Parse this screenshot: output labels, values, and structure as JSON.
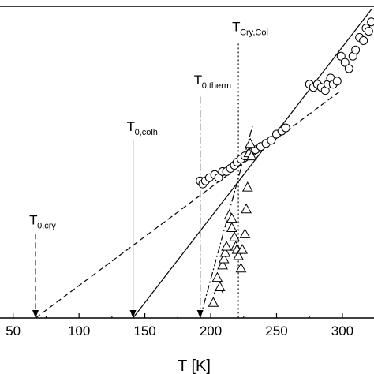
{
  "chart_data": {
    "type": "scatter",
    "xlabel": "T [K]",
    "xlim": [
      40,
      324
    ],
    "ylim": [
      0,
      1
    ],
    "xticks": [
      50,
      100,
      150,
      200,
      250,
      300
    ],
    "xtick_labels": [
      "50",
      "100",
      "150",
      "200",
      "250",
      "300"
    ],
    "series": [
      {
        "marker": "circle",
        "points": [
          [
            192,
            0.44
          ],
          [
            194,
            0.43
          ],
          [
            196,
            0.44
          ],
          [
            199,
            0.45
          ],
          [
            203,
            0.46
          ],
          [
            206,
            0.45
          ],
          [
            209,
            0.47
          ],
          [
            212,
            0.47
          ],
          [
            215,
            0.48
          ],
          [
            218,
            0.49
          ],
          [
            220,
            0.5
          ],
          [
            223,
            0.51
          ],
          [
            226,
            0.52
          ],
          [
            230,
            0.53
          ],
          [
            234,
            0.54
          ],
          [
            238,
            0.55
          ],
          [
            242,
            0.56
          ],
          [
            246,
            0.57
          ],
          [
            250,
            0.59
          ],
          [
            254,
            0.6
          ],
          [
            257,
            0.61
          ],
          [
            275,
            0.75
          ],
          [
            278,
            0.74
          ],
          [
            281,
            0.75
          ],
          [
            284,
            0.74
          ],
          [
            287,
            0.73
          ],
          [
            289,
            0.75
          ],
          [
            291,
            0.77
          ],
          [
            293,
            0.75
          ],
          [
            296,
            0.76
          ],
          [
            299,
            0.84
          ],
          [
            302,
            0.82
          ],
          [
            305,
            0.8
          ],
          [
            308,
            0.84
          ],
          [
            310,
            0.86
          ],
          [
            313,
            0.9
          ],
          [
            316,
            0.89
          ],
          [
            318,
            0.93
          ],
          [
            320,
            0.92
          ],
          [
            322,
            0.95
          ]
        ]
      },
      {
        "marker": "triangle",
        "points": [
          [
            202,
            0.05
          ],
          [
            205,
            0.13
          ],
          [
            206,
            0.09
          ],
          [
            207,
            0.1
          ],
          [
            209,
            0.17
          ],
          [
            210,
            0.19
          ],
          [
            211,
            0.21
          ],
          [
            212,
            0.23
          ],
          [
            214,
            0.33
          ],
          [
            216,
            0.29
          ],
          [
            216,
            0.32
          ],
          [
            218,
            0.26
          ],
          [
            219,
            0.23
          ],
          [
            220,
            0.22
          ],
          [
            221,
            0.2
          ],
          [
            223,
            0.16
          ],
          [
            224,
            0.22
          ],
          [
            226,
            0.27
          ],
          [
            227,
            0.35
          ],
          [
            228,
            0.42
          ],
          [
            229,
            0.53
          ],
          [
            230,
            0.56
          ],
          [
            231,
            0.52
          ]
        ]
      }
    ],
    "lines": [
      {
        "style": "solid",
        "from": [
          141,
          0.0
        ],
        "to": [
          322,
          0.99
        ]
      },
      {
        "style": "dashed",
        "from": [
          67,
          0.0
        ],
        "to": [
          299,
          0.73
        ]
      },
      {
        "style": "dashdot",
        "from": [
          192,
          0.0
        ],
        "to": [
          232,
          0.62
        ]
      }
    ],
    "annotations": [
      {
        "label": "T",
        "sub": "0,cry",
        "x": 67,
        "style": "dashed",
        "arrow": true,
        "line_top": 0.27,
        "label_y": 0.3
      },
      {
        "label": "T",
        "sub": "0,colh",
        "x": 141,
        "style": "solid",
        "arrow": true,
        "line_top": 0.57,
        "label_y": 0.6
      },
      {
        "label": "T",
        "sub": "0,therm",
        "x": 192,
        "style": "dashdot",
        "arrow": true,
        "line_top": 0.71,
        "label_y": 0.75
      },
      {
        "label": "T",
        "sub": "Cry,Col",
        "x": 221,
        "style": "dotted",
        "arrow": false,
        "line_top": 0.88,
        "label_y": 0.92
      }
    ]
  }
}
